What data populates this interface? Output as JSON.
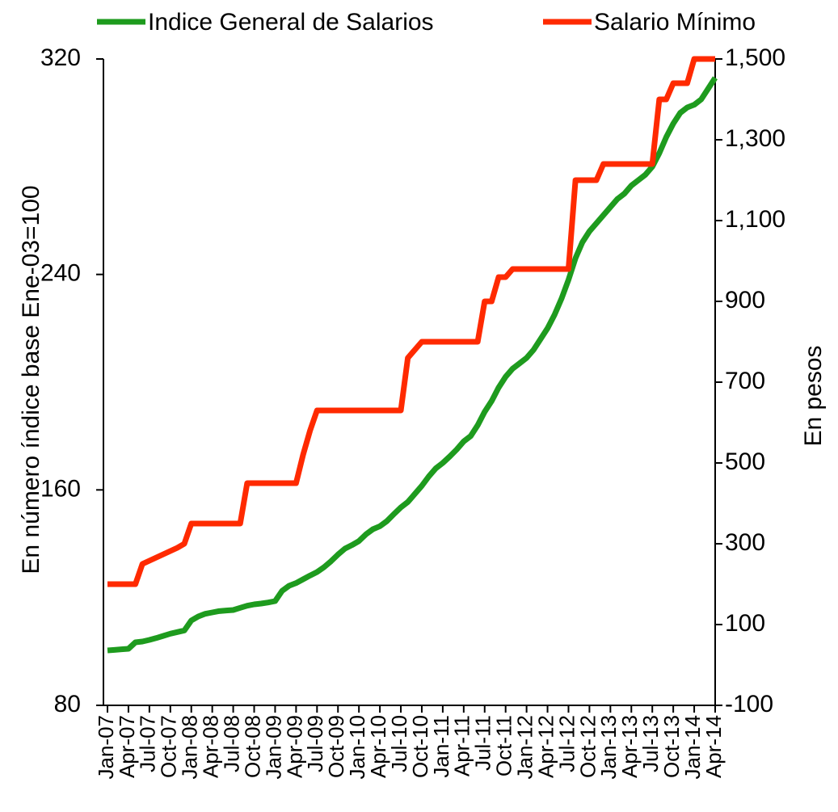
{
  "chart_data": {
    "type": "line",
    "categories": [
      "Jan-07",
      null,
      null,
      "Apr-07",
      null,
      null,
      "Jul-07",
      null,
      null,
      "Oct-07",
      null,
      null,
      "Jan-08",
      null,
      null,
      "Apr-08",
      null,
      null,
      "Jul-08",
      null,
      null,
      "Oct-08",
      null,
      null,
      "Jan-09",
      null,
      null,
      "Apr-09",
      null,
      null,
      "Jul-09",
      null,
      null,
      "Oct-09",
      null,
      null,
      "Jan-10",
      null,
      null,
      "Apr-10",
      null,
      null,
      "Jul-10",
      null,
      null,
      "Oct-10",
      null,
      null,
      "Jan-11",
      null,
      null,
      "Apr-11",
      null,
      null,
      "Jul-11",
      null,
      null,
      "Oct-11",
      null,
      null,
      "Jan-12",
      null,
      null,
      "Apr-12",
      null,
      null,
      "Jul-12",
      null,
      null,
      "Oct-12",
      null,
      null,
      "Jan-13",
      null,
      null,
      "Apr-13",
      null,
      null,
      "Jul-13",
      null,
      null,
      "Oct-13",
      null,
      null,
      "Jan-14",
      null,
      null,
      "Apr-14"
    ],
    "series": [
      {
        "name": "Indice General de Salarios",
        "color": "#1e9b1e",
        "axis": "y",
        "values": [
          100.4,
          100.6,
          100.8,
          101,
          103.4,
          103.7,
          104.3,
          105,
          105.8,
          106.6,
          107.2,
          107.8,
          111.5,
          113,
          114,
          114.5,
          115,
          115.2,
          115.4,
          116.2,
          117,
          117.5,
          117.8,
          118.2,
          118.7,
          122.5,
          124.4,
          125.4,
          126.8,
          128.2,
          129.5,
          131.3,
          133.5,
          136,
          138.2,
          139.5,
          141,
          143.5,
          145.4,
          146.5,
          148.4,
          151,
          153.5,
          155.5,
          158.5,
          161.5,
          165,
          168,
          170,
          172.4,
          175,
          178,
          180,
          184,
          189,
          193,
          198,
          202,
          205,
          207,
          209,
          212,
          216,
          220,
          225,
          231,
          238,
          246,
          252,
          256,
          259,
          262,
          265,
          268,
          270,
          273,
          275,
          277,
          280,
          285,
          291,
          296,
          300,
          302,
          303,
          305,
          309,
          313
        ]
      },
      {
        "name": "Salario Mínimo",
        "color": "#ff2a00",
        "axis": "y2",
        "values": [
          200,
          200,
          200,
          200,
          200,
          250,
          258,
          266,
          274,
          282,
          290,
          300,
          350,
          350,
          350,
          350,
          350,
          350,
          350,
          350,
          450,
          450,
          450,
          450,
          450,
          450,
          450,
          450,
          520,
          580,
          630,
          630,
          630,
          630,
          630,
          630,
          630,
          630,
          630,
          630,
          630,
          630,
          630,
          760,
          780,
          800,
          800,
          800,
          800,
          800,
          800,
          800,
          800,
          800,
          900,
          900,
          960,
          960,
          980,
          980,
          980,
          980,
          980,
          980,
          980,
          980,
          980,
          1200,
          1200,
          1200,
          1200,
          1240,
          1240,
          1240,
          1240,
          1240,
          1240,
          1240,
          1240,
          1400,
          1400,
          1440,
          1440,
          1440,
          1500,
          1500,
          1500,
          1500
        ]
      }
    ],
    "ylabel": "En número índice base Ene-03=100",
    "y2label": "En pesos",
    "ylim": [
      80,
      320
    ],
    "yticks": [
      80,
      160,
      240,
      320
    ],
    "y2lim": [
      -100,
      1500
    ],
    "y2ticks": [
      -100,
      100,
      300,
      500,
      700,
      900,
      {
        "value": 1100,
        "label": "1,100"
      },
      {
        "value": 1300,
        "label": "1,300"
      },
      {
        "value": 1500,
        "label": "1,500"
      }
    ],
    "grid": false,
    "legend": "top"
  }
}
